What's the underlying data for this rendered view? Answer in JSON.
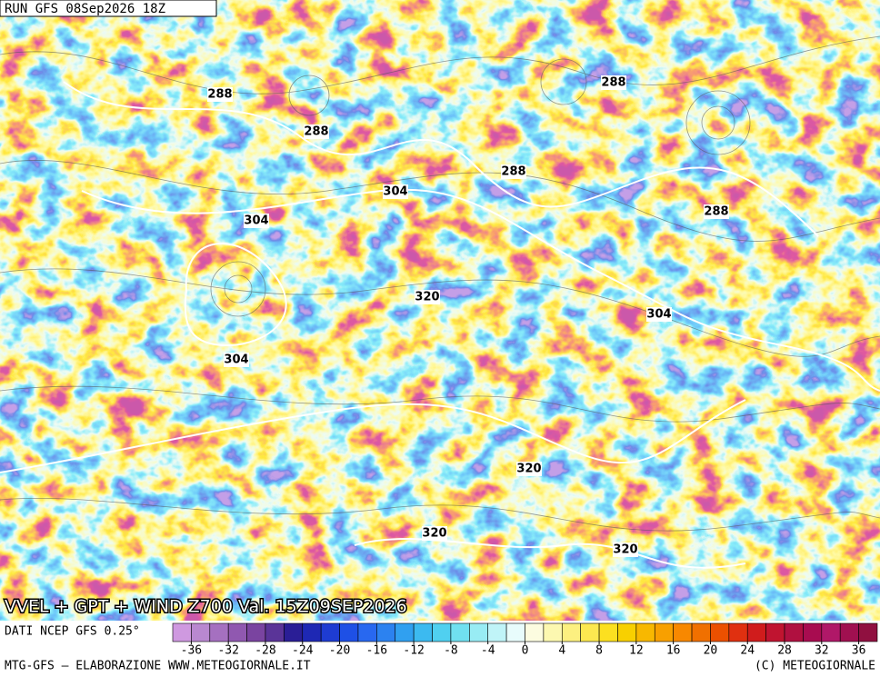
{
  "header": {
    "run": "RUN GFS 08Sep2026 18Z"
  },
  "map": {
    "title": "VVEL + GPT + WIND Z700 Val. 15Z09SEP2026",
    "contour_labels": [
      288,
      288,
      288,
      288,
      288,
      304,
      304,
      304,
      304,
      320,
      320,
      320,
      320
    ]
  },
  "colorbar": {
    "source": "DATI NCEP GFS 0.25°",
    "range": [
      -38,
      38
    ],
    "ticks": [
      -36,
      -32,
      -28,
      -24,
      -20,
      -16,
      -12,
      -8,
      -4,
      0,
      4,
      8,
      12,
      16,
      20,
      24,
      28,
      32,
      36
    ],
    "colors": [
      "#cf99e0",
      "#b988d0",
      "#a570c0",
      "#9058b0",
      "#7a44a0",
      "#5a3498",
      "#2a1e96",
      "#1e28b4",
      "#1e3cd2",
      "#1e50e6",
      "#2868f0",
      "#2c82f0",
      "#30a0f0",
      "#3cbaf0",
      "#50d0f0",
      "#70e0f0",
      "#98ecf4",
      "#c0f4f8",
      "#e8fcfc",
      "#fcfce0",
      "#fcf8b0",
      "#fcf080",
      "#fce850",
      "#fce020",
      "#f8d000",
      "#f8b800",
      "#f8a000",
      "#f88800",
      "#f07000",
      "#ec5000",
      "#e03010",
      "#d01c1c",
      "#c01430",
      "#b01040",
      "#a80c50",
      "#b01868",
      "#a01050",
      "#901040"
    ]
  },
  "footer": {
    "left": "MTG-GFS — ELABORAZIONE WWW.METEOGIORNALE.IT",
    "right": "(C) METEOGIORNALE"
  }
}
